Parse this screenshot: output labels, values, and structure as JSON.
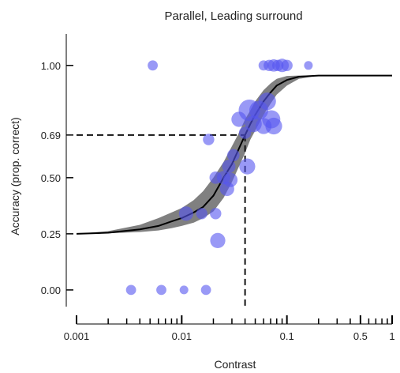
{
  "chart_data": {
    "type": "scatter",
    "title": "Parallel, Leading surround",
    "xlabel": "Contrast",
    "ylabel": "Accuracy (prop. correct)",
    "x_scale": "log",
    "xlim": [
      0.001,
      1
    ],
    "ylim": [
      -0.12,
      1.14
    ],
    "x_ticks": [
      {
        "value": 0.001,
        "label": "0.001"
      },
      {
        "value": 0.01,
        "label": "0.01"
      },
      {
        "value": 0.1,
        "label": "0.1"
      },
      {
        "value": 0.5,
        "label": "0.5"
      },
      {
        "value": 1,
        "label": "1"
      }
    ],
    "y_ticks": [
      {
        "value": 0.0,
        "label": "0.00"
      },
      {
        "value": 0.25,
        "label": "0.25"
      },
      {
        "value": 0.5,
        "label": "0.50"
      },
      {
        "value": 0.69,
        "label": "0.69"
      },
      {
        "value": 1.0,
        "label": "1.00"
      }
    ],
    "threshold": {
      "x": 0.04,
      "y": 0.69
    },
    "fit": {
      "guess": 0.25,
      "upper": 0.955,
      "curve": [
        [
          0.001,
          0.25
        ],
        [
          0.002,
          0.255
        ],
        [
          0.004,
          0.27
        ],
        [
          0.006,
          0.285
        ],
        [
          0.008,
          0.305
        ],
        [
          0.01,
          0.32
        ],
        [
          0.013,
          0.345
        ],
        [
          0.016,
          0.37
        ],
        [
          0.02,
          0.42
        ],
        [
          0.025,
          0.5
        ],
        [
          0.03,
          0.56
        ],
        [
          0.035,
          0.63
        ],
        [
          0.04,
          0.69
        ],
        [
          0.045,
          0.74
        ],
        [
          0.05,
          0.78
        ],
        [
          0.06,
          0.84
        ],
        [
          0.07,
          0.88
        ],
        [
          0.08,
          0.91
        ],
        [
          0.1,
          0.935
        ],
        [
          0.13,
          0.95
        ],
        [
          0.2,
          0.955
        ],
        [
          1,
          0.955
        ]
      ],
      "band_upper": [
        [
          0.001,
          0.25
        ],
        [
          0.002,
          0.262
        ],
        [
          0.004,
          0.29
        ],
        [
          0.006,
          0.32
        ],
        [
          0.008,
          0.345
        ],
        [
          0.01,
          0.365
        ],
        [
          0.013,
          0.4
        ],
        [
          0.016,
          0.44
        ],
        [
          0.02,
          0.5
        ],
        [
          0.025,
          0.57
        ],
        [
          0.03,
          0.64
        ],
        [
          0.035,
          0.7
        ],
        [
          0.04,
          0.76
        ],
        [
          0.045,
          0.8
        ],
        [
          0.05,
          0.84
        ],
        [
          0.06,
          0.89
        ],
        [
          0.07,
          0.92
        ],
        [
          0.08,
          0.94
        ],
        [
          0.1,
          0.953
        ],
        [
          0.13,
          0.955
        ],
        [
          0.2,
          0.955
        ]
      ],
      "band_lower": [
        [
          0.001,
          0.25
        ],
        [
          0.002,
          0.252
        ],
        [
          0.004,
          0.258
        ],
        [
          0.006,
          0.265
        ],
        [
          0.008,
          0.275
        ],
        [
          0.01,
          0.285
        ],
        [
          0.013,
          0.3
        ],
        [
          0.016,
          0.32
        ],
        [
          0.02,
          0.35
        ],
        [
          0.025,
          0.41
        ],
        [
          0.03,
          0.48
        ],
        [
          0.035,
          0.55
        ],
        [
          0.04,
          0.61
        ],
        [
          0.045,
          0.67
        ],
        [
          0.05,
          0.71
        ],
        [
          0.06,
          0.78
        ],
        [
          0.07,
          0.83
        ],
        [
          0.08,
          0.87
        ],
        [
          0.1,
          0.91
        ],
        [
          0.13,
          0.94
        ],
        [
          0.2,
          0.955
        ]
      ]
    },
    "points": [
      {
        "x": 0.0053,
        "y": 1.0,
        "n": 4
      },
      {
        "x": 0.06,
        "y": 1.0,
        "n": 4
      },
      {
        "x": 0.068,
        "y": 1.0,
        "n": 5
      },
      {
        "x": 0.075,
        "y": 1.0,
        "n": 6
      },
      {
        "x": 0.082,
        "y": 1.0,
        "n": 5
      },
      {
        "x": 0.09,
        "y": 1.0,
        "n": 7
      },
      {
        "x": 0.1,
        "y": 1.0,
        "n": 5
      },
      {
        "x": 0.16,
        "y": 1.0,
        "n": 3
      },
      {
        "x": 0.044,
        "y": 0.8,
        "n": 18
      },
      {
        "x": 0.054,
        "y": 0.8,
        "n": 14
      },
      {
        "x": 0.065,
        "y": 0.84,
        "n": 12
      },
      {
        "x": 0.071,
        "y": 0.76,
        "n": 13
      },
      {
        "x": 0.048,
        "y": 0.74,
        "n": 11
      },
      {
        "x": 0.06,
        "y": 0.73,
        "n": 10
      },
      {
        "x": 0.075,
        "y": 0.73,
        "n": 11
      },
      {
        "x": 0.035,
        "y": 0.76,
        "n": 9
      },
      {
        "x": 0.04,
        "y": 0.7,
        "n": 6
      },
      {
        "x": 0.018,
        "y": 0.67,
        "n": 5
      },
      {
        "x": 0.031,
        "y": 0.6,
        "n": 6
      },
      {
        "x": 0.028,
        "y": 0.55,
        "n": 7
      },
      {
        "x": 0.042,
        "y": 0.55,
        "n": 10
      },
      {
        "x": 0.021,
        "y": 0.5,
        "n": 6
      },
      {
        "x": 0.025,
        "y": 0.5,
        "n": 7
      },
      {
        "x": 0.029,
        "y": 0.49,
        "n": 8
      },
      {
        "x": 0.027,
        "y": 0.45,
        "n": 8
      },
      {
        "x": 0.011,
        "y": 0.34,
        "n": 8
      },
      {
        "x": 0.0155,
        "y": 0.34,
        "n": 5
      },
      {
        "x": 0.021,
        "y": 0.34,
        "n": 5
      },
      {
        "x": 0.022,
        "y": 0.22,
        "n": 9
      },
      {
        "x": 0.0033,
        "y": 0.0,
        "n": 4
      },
      {
        "x": 0.0064,
        "y": 0.0,
        "n": 4
      },
      {
        "x": 0.0105,
        "y": 0.0,
        "n": 3
      },
      {
        "x": 0.017,
        "y": 0.0,
        "n": 4
      }
    ],
    "point_color": "#5555f0",
    "band_color": "#808080",
    "curve_color": "#000000",
    "grid": false,
    "legend": "none"
  }
}
